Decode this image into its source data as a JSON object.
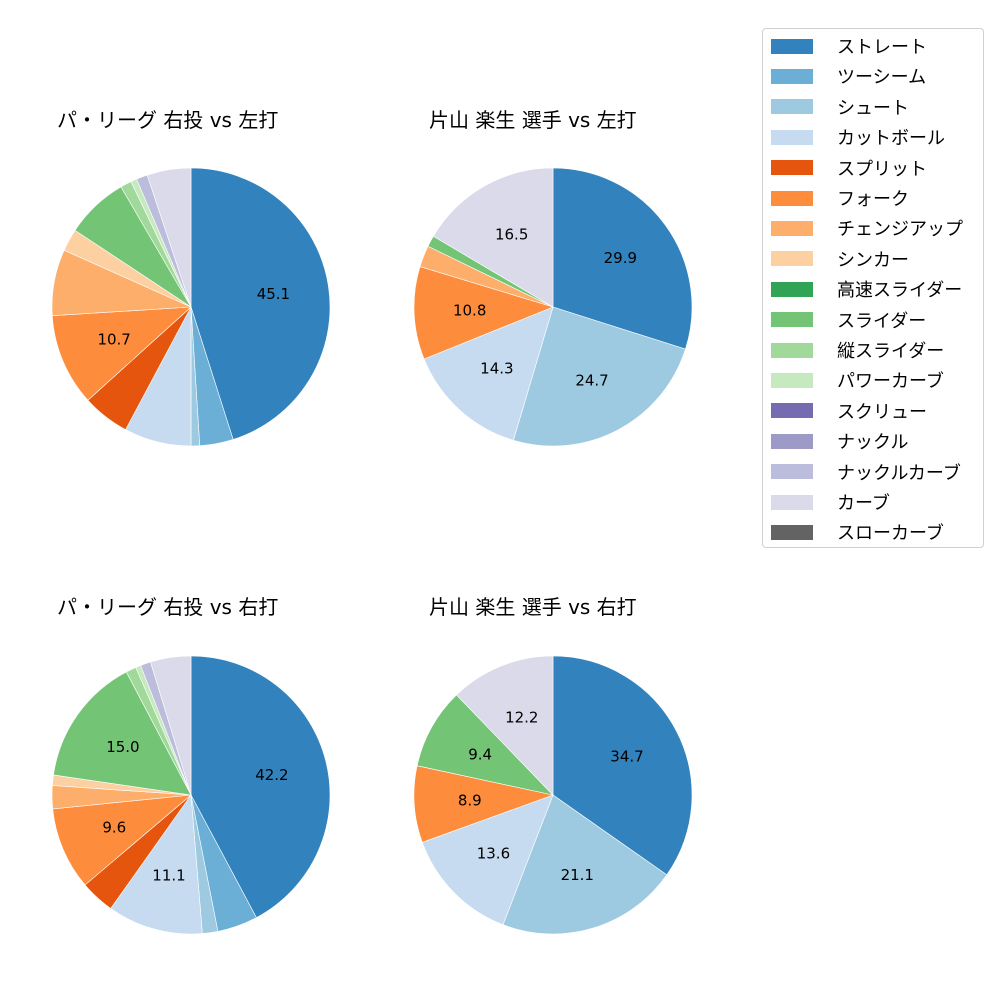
{
  "categories": [
    "ストレート",
    "ツーシーム",
    "シュート",
    "カットボール",
    "スプリット",
    "フォーク",
    "チェンジアップ",
    "シンカー",
    "高速スライダー",
    "スライダー",
    "縦スライダー",
    "パワーカーブ",
    "スクリュー",
    "ナックル",
    "ナックルカーブ",
    "カーブ",
    "スローカーブ"
  ],
  "colors": [
    "#3182bd",
    "#6baed6",
    "#9ecae1",
    "#c6dbef",
    "#e6550d",
    "#fd8d3c",
    "#fdae6b",
    "#fdd0a2",
    "#31a354",
    "#74c476",
    "#a1d99b",
    "#c7e9c0",
    "#756bb1",
    "#9e9ac8",
    "#bcbddc",
    "#dadaeb",
    "#636363"
  ],
  "legend": {
    "items": [
      {
        "label": "ストレート",
        "color": "#3182bd"
      },
      {
        "label": "ツーシーム",
        "color": "#6baed6"
      },
      {
        "label": "シュート",
        "color": "#9ecae1"
      },
      {
        "label": "カットボール",
        "color": "#c6dbef"
      },
      {
        "label": "スプリット",
        "color": "#e6550d"
      },
      {
        "label": "フォーク",
        "color": "#fd8d3c"
      },
      {
        "label": "チェンジアップ",
        "color": "#fdae6b"
      },
      {
        "label": "シンカー",
        "color": "#fdd0a2"
      },
      {
        "label": "高速スライダー",
        "color": "#31a354"
      },
      {
        "label": "スライダー",
        "color": "#74c476"
      },
      {
        "label": "縦スライダー",
        "color": "#a1d99b"
      },
      {
        "label": "パワーカーブ",
        "color": "#c7e9c0"
      },
      {
        "label": "スクリュー",
        "color": "#756bb1"
      },
      {
        "label": "ナックル",
        "color": "#9e9ac8"
      },
      {
        "label": "ナックルカーブ",
        "color": "#bcbddc"
      },
      {
        "label": "カーブ",
        "color": "#dadaeb"
      },
      {
        "label": "スローカーブ",
        "color": "#636363"
      }
    ]
  },
  "chart_data": [
    {
      "type": "pie",
      "title": "パ・リーグ 右投 vs 左打",
      "categories": [
        "ストレート",
        "ツーシーム",
        "シュート",
        "カットボール",
        "スプリット",
        "フォーク",
        "チェンジアップ",
        "シンカー",
        "高速スライダー",
        "スライダー",
        "縦スライダー",
        "パワーカーブ",
        "スクリュー",
        "ナックル",
        "ナックルカーブ",
        "カーブ",
        "スローカーブ"
      ],
      "values": [
        45.1,
        3.9,
        1.0,
        7.8,
        5.5,
        10.7,
        7.7,
        2.6,
        0,
        7.3,
        1.3,
        0.7,
        0,
        0,
        1.3,
        5.1,
        0
      ],
      "labels_shown": [
        "45.1",
        "10.7"
      ],
      "start_angle": 90,
      "direction": "clockwise"
    },
    {
      "type": "pie",
      "title": "片山 楽生 選手 vs 左打",
      "categories": [
        "ストレート",
        "ツーシーム",
        "シュート",
        "カットボール",
        "スプリット",
        "フォーク",
        "チェンジアップ",
        "シンカー",
        "高速スライダー",
        "スライダー",
        "縦スライダー",
        "パワーカーブ",
        "スクリュー",
        "ナックル",
        "ナックルカーブ",
        "カーブ",
        "スローカーブ"
      ],
      "values": [
        29.9,
        0,
        24.7,
        14.3,
        0,
        10.8,
        2.5,
        0,
        0,
        1.3,
        0,
        0,
        0,
        0,
        0,
        16.5,
        0
      ],
      "labels_shown": [
        "29.9",
        "24.7",
        "14.3",
        "10.8",
        "16.5"
      ],
      "start_angle": 90,
      "direction": "clockwise"
    },
    {
      "type": "pie",
      "title": "パ・リーグ 右投 vs 右打",
      "categories": [
        "ストレート",
        "ツーシーム",
        "シュート",
        "カットボール",
        "スプリット",
        "フォーク",
        "チェンジアップ",
        "シンカー",
        "高速スライダー",
        "スライダー",
        "縦スライダー",
        "パワーカーブ",
        "スクリュー",
        "ナックル",
        "ナックルカーブ",
        "カーブ",
        "スローカーブ"
      ],
      "values": [
        42.2,
        4.7,
        1.8,
        11.1,
        4.0,
        9.6,
        2.7,
        1.2,
        0,
        15.0,
        1.2,
        0.6,
        0,
        0,
        1.2,
        4.7,
        0
      ],
      "labels_shown": [
        "42.2",
        "11.1",
        "9.6",
        "15.0"
      ],
      "start_angle": 90,
      "direction": "clockwise"
    },
    {
      "type": "pie",
      "title": "片山 楽生 選手 vs 右打",
      "categories": [
        "ストレート",
        "ツーシーム",
        "シュート",
        "カットボール",
        "スプリット",
        "フォーク",
        "チェンジアップ",
        "シンカー",
        "高速スライダー",
        "スライダー",
        "縦スライダー",
        "パワーカーブ",
        "スクリュー",
        "ナックル",
        "ナックルカーブ",
        "カーブ",
        "スローカーブ"
      ],
      "values": [
        34.7,
        0,
        21.1,
        13.6,
        0,
        8.9,
        0,
        0,
        0,
        9.4,
        0,
        0,
        0,
        0,
        0,
        12.2,
        0
      ],
      "labels_shown": [
        "34.7",
        "21.1",
        "13.6",
        "8.9",
        "9.4",
        "12.2"
      ],
      "start_angle": 90,
      "direction": "clockwise"
    }
  ],
  "charts": [
    {
      "title": "パ・リーグ 右投 vs 左打"
    },
    {
      "title": "片山 楽生 選手 vs 左打"
    },
    {
      "title": "パ・リーグ 右投 vs 右打"
    },
    {
      "title": "片山 楽生 選手 vs 右打"
    }
  ]
}
